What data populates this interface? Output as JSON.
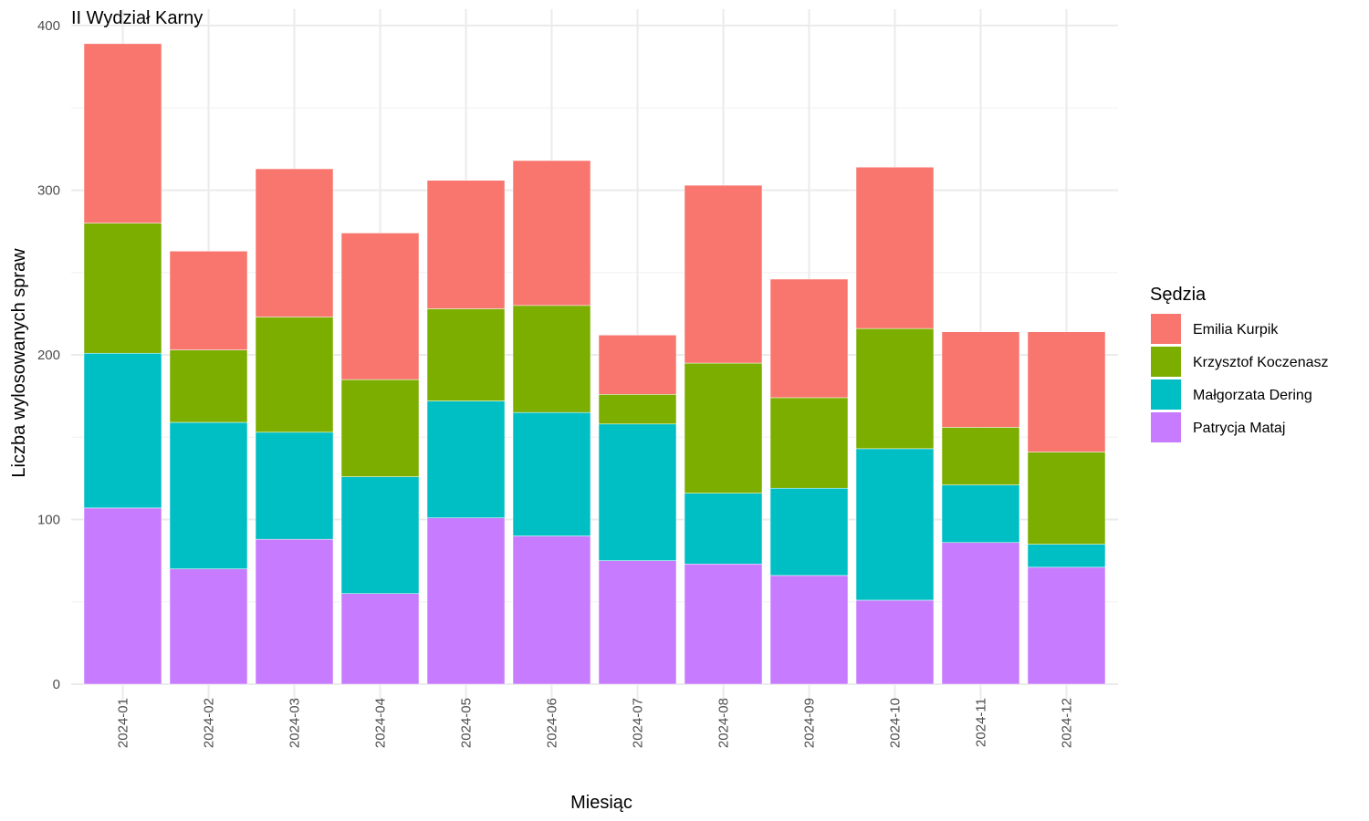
{
  "chart_data": {
    "type": "bar",
    "stacked": true,
    "title": "II Wydział Karny",
    "xlabel": "Miesiąc",
    "ylabel": "Liczba wylosowanych spraw",
    "ylim": [
      0,
      400
    ],
    "yticks": [
      0,
      100,
      200,
      300,
      400
    ],
    "grid": true,
    "legend_title": "Sędzia",
    "legend_position": "right",
    "categories": [
      "2024-01",
      "2024-02",
      "2024-03",
      "2024-04",
      "2024-05",
      "2024-06",
      "2024-07",
      "2024-08",
      "2024-09",
      "2024-10",
      "2024-11",
      "2024-12"
    ],
    "series": [
      {
        "name": "Patrycja Mataj",
        "color": "#C77CFF",
        "values": [
          107,
          70,
          88,
          55,
          101,
          90,
          75,
          73,
          66,
          51,
          86,
          71
        ]
      },
      {
        "name": "Małgorzata Dering",
        "color": "#00BFC4",
        "values": [
          94,
          89,
          65,
          71,
          71,
          75,
          83,
          43,
          53,
          92,
          35,
          14
        ]
      },
      {
        "name": "Krzysztof Koczenasz",
        "color": "#7CAE00",
        "values": [
          79,
          44,
          70,
          59,
          56,
          65,
          18,
          79,
          55,
          73,
          35,
          56
        ]
      },
      {
        "name": "Emilia Kurpik",
        "color": "#F8766D",
        "values": [
          109,
          60,
          90,
          89,
          78,
          88,
          36,
          108,
          72,
          98,
          58,
          73
        ]
      }
    ],
    "legend_order": [
      "Emilia Kurpik",
      "Krzysztof Koczenasz",
      "Małgorzata Dering",
      "Patrycja Mataj"
    ]
  }
}
